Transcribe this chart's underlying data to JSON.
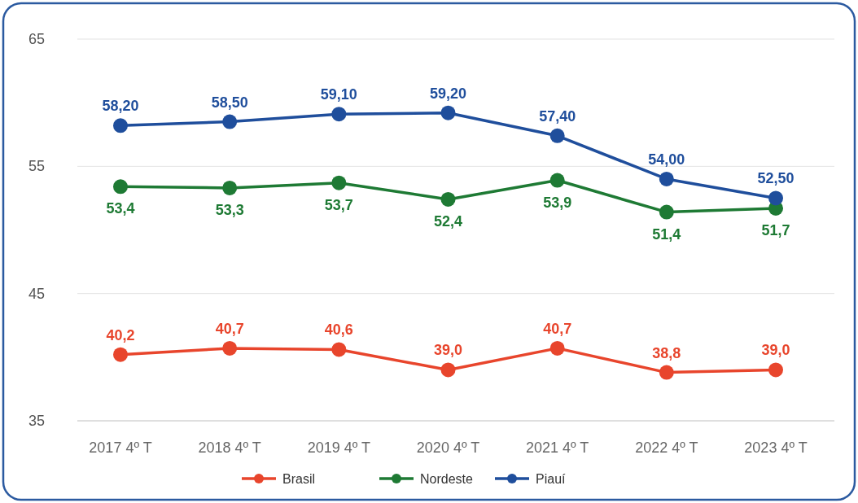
{
  "chart_data": {
    "type": "line",
    "categories": [
      "2017 4º T",
      "2018 4º T",
      "2019 4º T",
      "2020 4º T",
      "2021 4º T",
      "2022 4º T",
      "2023 4º T"
    ],
    "series": [
      {
        "name": "Brasil",
        "color": "#e8452c",
        "values": [
          40.2,
          40.7,
          40.6,
          39.0,
          40.7,
          38.8,
          39.0
        ],
        "value_labels": [
          "40,2",
          "40,7",
          "40,6",
          "39,0",
          "40,7",
          "38,8",
          "39,0"
        ]
      },
      {
        "name": "Nordeste",
        "color": "#1e7a34",
        "values": [
          53.4,
          53.3,
          53.7,
          52.4,
          53.9,
          51.4,
          51.7
        ],
        "value_labels": [
          "53,4",
          "53,3",
          "53,7",
          "52,4",
          "53,9",
          "51,4",
          "51,7"
        ]
      },
      {
        "name": "Piauí",
        "color": "#1f4e9c",
        "values": [
          58.2,
          58.5,
          59.1,
          59.2,
          57.4,
          54.0,
          52.5
        ],
        "value_labels": [
          "58,20",
          "58,50",
          "59,10",
          "59,20",
          "57,40",
          "54,00",
          "52,50"
        ]
      }
    ],
    "ylim": [
      35,
      65
    ],
    "yticks": [
      35,
      45,
      55,
      65
    ],
    "grid": "y",
    "legend": "bottom",
    "marker": "circle",
    "line_style": "solid"
  }
}
